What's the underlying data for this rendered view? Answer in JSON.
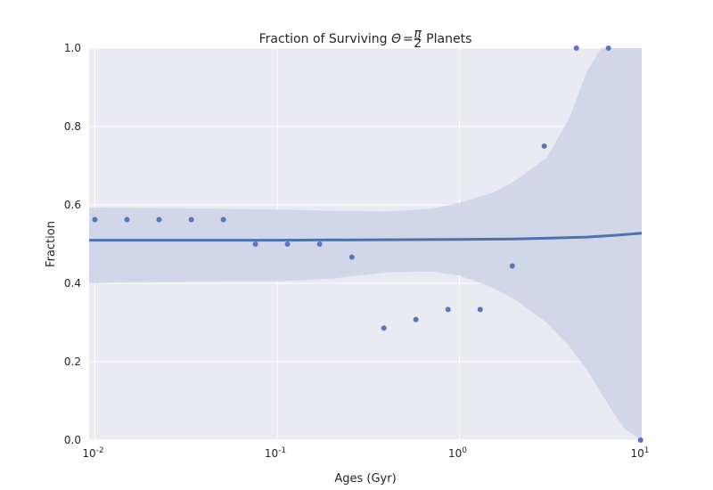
{
  "chart_data": {
    "type": "scatter",
    "title": "Fraction of Surviving Θ = π/2 Planets",
    "title_parts": {
      "prefix": "Fraction of Surviving ",
      "symbol": "Θ",
      "equals": "=",
      "numerator": "π",
      "denominator": "2",
      "suffix": " Planets"
    },
    "xlabel": "Ages (Gyr)",
    "ylabel": "Fraction",
    "xscale": "log",
    "xlim": [
      0.0093,
      10
    ],
    "ylim": [
      0.0,
      1.0
    ],
    "grid": true,
    "x_ticks": [
      {
        "value": 0.01,
        "base": "10",
        "exp": "-2"
      },
      {
        "value": 0.1,
        "base": "10",
        "exp": "-1"
      },
      {
        "value": 1,
        "base": "10",
        "exp": "0"
      },
      {
        "value": 10,
        "base": "10",
        "exp": "1"
      }
    ],
    "y_ticks": [
      "0.0",
      "0.2",
      "0.4",
      "0.6",
      "0.8",
      "1.0"
    ],
    "points": [
      {
        "x": 0.01,
        "y": 0.5625
      },
      {
        "x": 0.015,
        "y": 0.5625
      },
      {
        "x": 0.0225,
        "y": 0.5625
      },
      {
        "x": 0.0338,
        "y": 0.5625
      },
      {
        "x": 0.0507,
        "y": 0.5625
      },
      {
        "x": 0.076,
        "y": 0.5
      },
      {
        "x": 0.114,
        "y": 0.5
      },
      {
        "x": 0.171,
        "y": 0.5
      },
      {
        "x": 0.257,
        "y": 0.4667
      },
      {
        "x": 0.385,
        "y": 0.2857
      },
      {
        "x": 0.577,
        "y": 0.3077
      },
      {
        "x": 0.866,
        "y": 0.3333
      },
      {
        "x": 1.3,
        "y": 0.3333
      },
      {
        "x": 1.95,
        "y": 0.4444
      },
      {
        "x": 2.92,
        "y": 0.75
      },
      {
        "x": 4.38,
        "y": 1.0
      },
      {
        "x": 6.57,
        "y": 1.0
      },
      {
        "x": 9.86,
        "y": 0.0
      }
    ],
    "fit_line": {
      "x": [
        0.0093,
        0.03,
        0.1,
        0.3,
        1,
        2,
        3,
        5,
        7,
        10
      ],
      "y": [
        0.51,
        0.51,
        0.51,
        0.511,
        0.512,
        0.513,
        0.515,
        0.518,
        0.522,
        0.528
      ]
    },
    "confidence_band": {
      "x": [
        0.0093,
        0.02,
        0.05,
        0.1,
        0.2,
        0.4,
        0.7,
        1.0,
        1.5,
        2.0,
        3.0,
        4.0,
        5.0,
        6.0,
        7.0,
        8.0,
        10.0
      ],
      "upper": [
        0.593,
        0.592,
        0.59,
        0.588,
        0.585,
        0.583,
        0.59,
        0.605,
        0.63,
        0.66,
        0.72,
        0.82,
        0.94,
        1.0,
        1.0,
        1.0,
        1.0
      ],
      "lower": [
        0.4,
        0.403,
        0.405,
        0.405,
        0.412,
        0.428,
        0.43,
        0.42,
        0.39,
        0.36,
        0.3,
        0.24,
        0.18,
        0.12,
        0.07,
        0.03,
        0.0
      ]
    },
    "colors": {
      "background": "#eaeaf2",
      "grid": "#ffffff",
      "points": "#5976b8",
      "line": "#4c72b0",
      "band": "#ccd4e8"
    }
  }
}
